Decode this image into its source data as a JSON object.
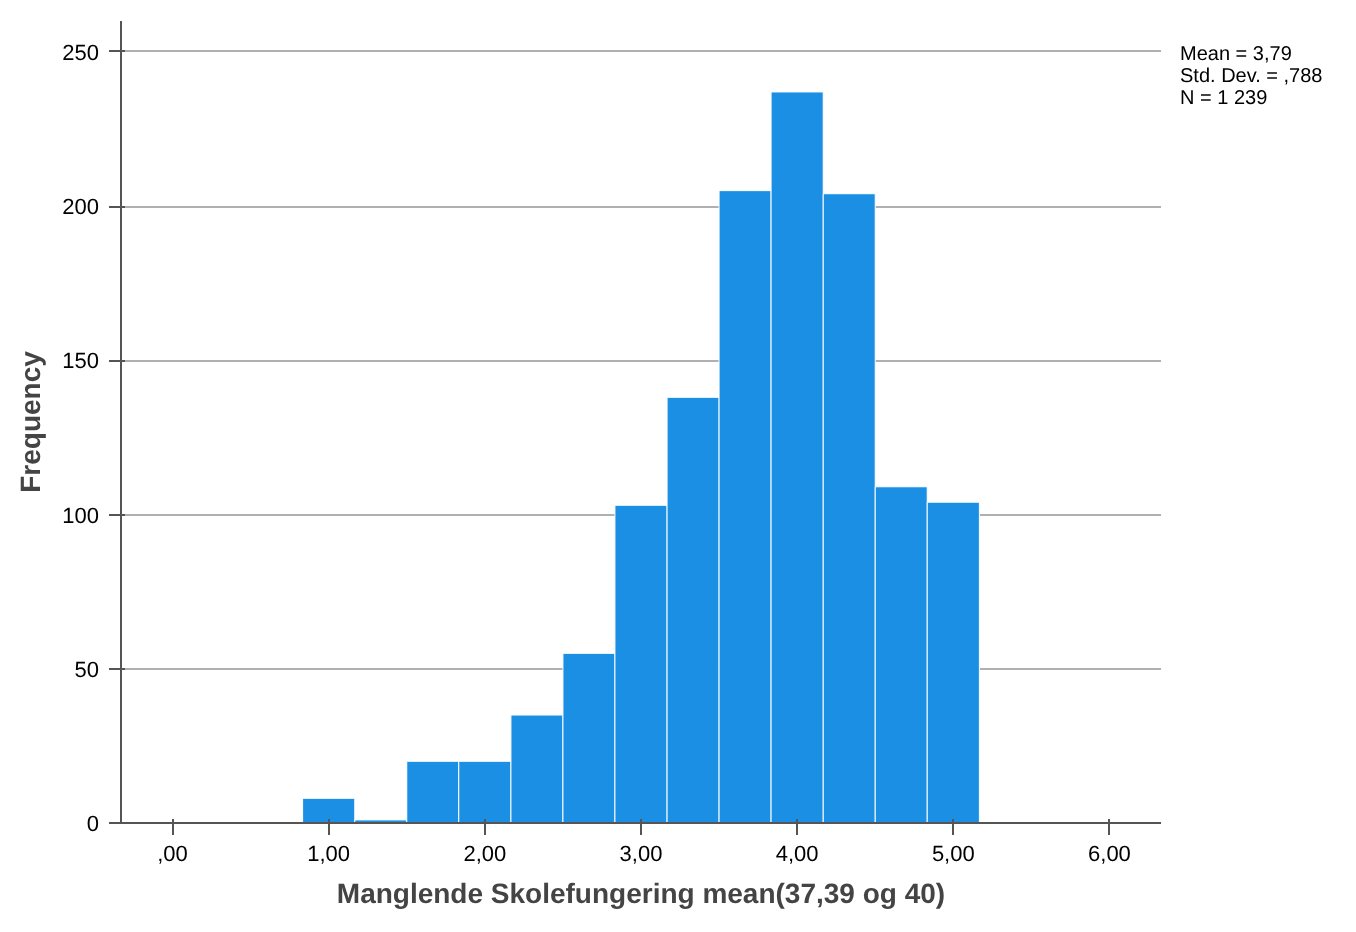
{
  "chart_data": {
    "type": "histogram",
    "xlabel": "Manglende Skolefungering mean(37,39 og 40)",
    "ylabel": "Frequency",
    "bins": [
      0.833,
      1.167,
      1.5,
      1.833,
      2.167,
      2.5,
      2.833,
      3.167,
      3.5,
      3.833,
      4.167,
      4.5,
      4.833,
      5.167
    ],
    "values": [
      8,
      1,
      20,
      20,
      35,
      55,
      103,
      138,
      205,
      237,
      204,
      109,
      104
    ],
    "color": "#1a8fe3",
    "xlim": [
      -0.33,
      6.33
    ],
    "xticks": [
      {
        "value": 0,
        "label": ",00"
      },
      {
        "value": 1,
        "label": "1,00"
      },
      {
        "value": 2,
        "label": "2,00"
      },
      {
        "value": 3,
        "label": "3,00"
      },
      {
        "value": 4,
        "label": "4,00"
      },
      {
        "value": 5,
        "label": "5,00"
      },
      {
        "value": 6,
        "label": "6,00"
      }
    ],
    "ylim": [
      0,
      260
    ],
    "yticks": [
      0,
      50,
      100,
      150,
      200,
      250
    ],
    "grid": "y",
    "annotations": [
      "Mean = 3,79",
      "Std. Dev. = ,788",
      "N = 1 239"
    ]
  }
}
